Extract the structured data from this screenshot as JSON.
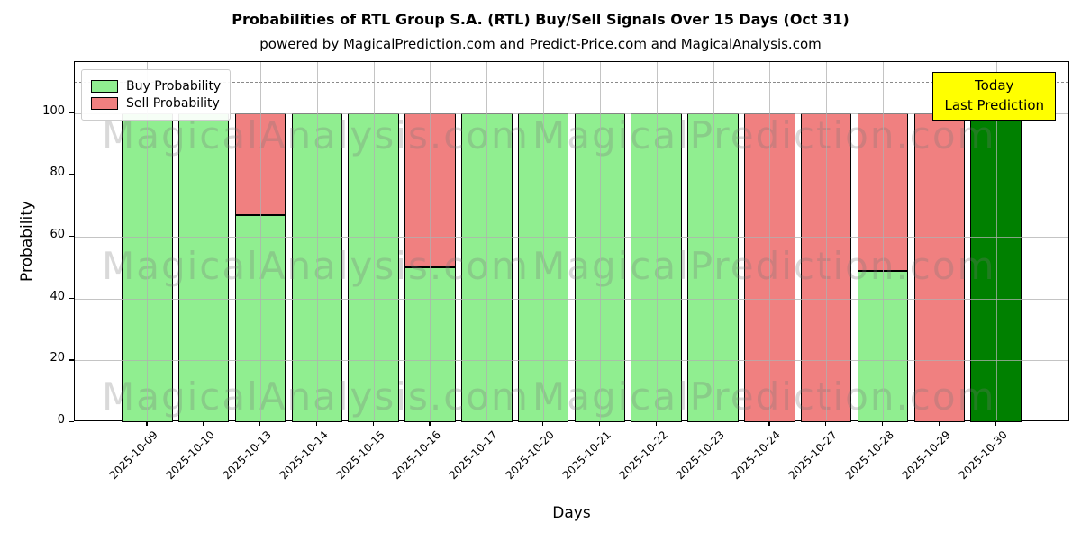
{
  "figure": {
    "title": "Probabilities of RTL Group S.A. (RTL) Buy/Sell Signals Over 15 Days (Oct 31)",
    "subtitle": "powered by MagicalPrediction.com and Predict-Price.com and MagicalAnalysis.com"
  },
  "legend": {
    "buy_label": "Buy Probability",
    "sell_label": "Sell Probability"
  },
  "annotation": {
    "line1": "Today",
    "line2": "Last Prediction"
  },
  "axes": {
    "xlabel": "Days",
    "ylabel": "Probability"
  },
  "watermarks": {
    "left": "MagicalAnalysis.com",
    "right": "MagicalPrediction.com"
  },
  "colors": {
    "buy": "#90EE90",
    "sell": "#F08080",
    "today_bar": "#008000",
    "annotation_bg": "#FFFF00",
    "grid": "#b0b0b0",
    "dashed_line": "#8a8a8a",
    "bar_edge": "#000000"
  },
  "chart_data": {
    "type": "bar",
    "stacked": true,
    "title": "Probabilities of RTL Group S.A. (RTL) Buy/Sell Signals Over 15 Days (Oct 31)",
    "xlabel": "Days",
    "ylabel": "Probability",
    "categories": [
      "2025-10-09",
      "2025-10-10",
      "2025-10-13",
      "2025-10-14",
      "2025-10-15",
      "2025-10-16",
      "2025-10-17",
      "2025-10-20",
      "2025-10-21",
      "2025-10-22",
      "2025-10-23",
      "2025-10-24",
      "2025-10-27",
      "2025-10-28",
      "2025-10-29",
      "2025-10-30"
    ],
    "series": [
      {
        "name": "Buy Probability",
        "color": "#90EE90",
        "values": [
          100,
          100,
          67,
          100,
          100,
          50,
          100,
          100,
          100,
          100,
          100,
          0,
          0,
          49,
          0,
          100
        ]
      },
      {
        "name": "Sell Probability",
        "color": "#F08080",
        "values": [
          0,
          0,
          33,
          0,
          0,
          50,
          0,
          0,
          0,
          0,
          0,
          100,
          100,
          51,
          100,
          0
        ]
      }
    ],
    "today_index": 15,
    "today_color": "#008000",
    "yticks": [
      0,
      20,
      40,
      60,
      80,
      100
    ],
    "ylim": [
      0,
      116.5
    ],
    "dashed_line_y": 110,
    "grid": true,
    "legend_position": "upper left",
    "bar_width_fraction": 0.9
  }
}
